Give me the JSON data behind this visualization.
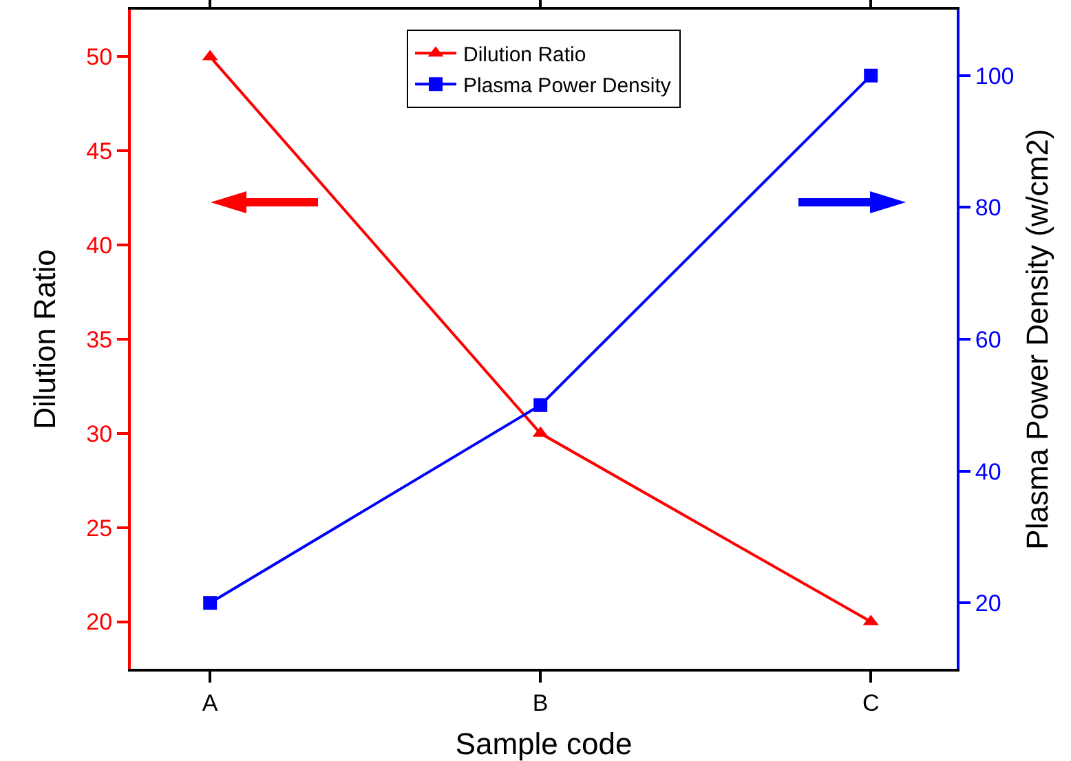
{
  "chart_data": {
    "type": "line",
    "xlabel": "Sample code",
    "ylabel": "Dilution Ratio",
    "y2label": "Plasma Power Density (w/cm2)",
    "categories": [
      "A",
      "B",
      "C"
    ],
    "series": [
      {
        "name": "Dilution Ratio",
        "color": "#ff0000",
        "values": [
          50,
          30,
          20
        ],
        "marker": "triangle"
      },
      {
        "name": "Plasma Power Density",
        "color": "#0000ff",
        "values": [
          20,
          50,
          100
        ],
        "marker": "square",
        "axis": "y2"
      }
    ],
    "ylim": [
      17.5,
      52.5
    ],
    "yticks": [
      20,
      25,
      30,
      35,
      40,
      45,
      50
    ],
    "y2lim": [
      10,
      110
    ],
    "y2ticks": [
      20,
      40,
      60,
      80,
      100
    ],
    "grid": false,
    "legend": "top",
    "line_style": "solid"
  }
}
